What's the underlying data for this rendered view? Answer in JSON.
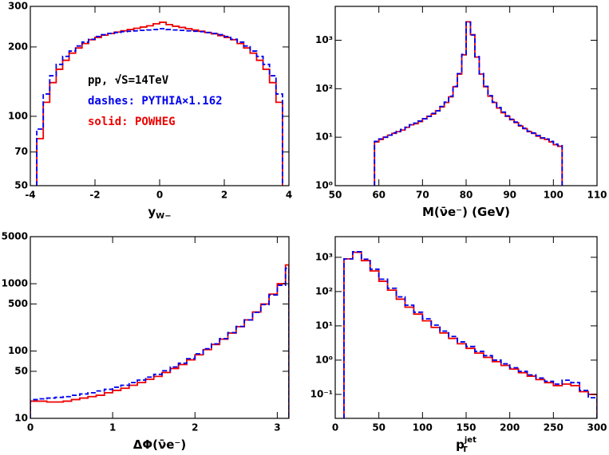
{
  "chart_data": [
    {
      "type": "histogram",
      "log_y": true,
      "xlabel": "y",
      "xlabel_sub": "W−",
      "xlim": [
        -4,
        4
      ],
      "xticks": [
        -4,
        -2,
        0,
        2,
        4
      ],
      "ylim": [
        50,
        300
      ],
      "yticks": [
        50,
        70,
        100,
        200,
        300
      ],
      "annotations": [
        {
          "text": "pp, √S=14TeV",
          "color": "#000000"
        },
        {
          "text": "dashes: PYTHIA×1.162",
          "color": "#0000ee"
        },
        {
          "text": "solid: POWHEG",
          "color": "#ee0000"
        }
      ],
      "bins": [
        -3.8,
        -3.6,
        -3.4,
        -3.2,
        -3.0,
        -2.8,
        -2.6,
        -2.4,
        -2.2,
        -2.0,
        -1.8,
        -1.6,
        -1.4,
        -1.2,
        -1.0,
        -0.8,
        -0.6,
        -0.4,
        -0.2,
        0,
        0.2,
        0.4,
        0.6,
        0.8,
        1.0,
        1.2,
        1.4,
        1.6,
        1.8,
        2.0,
        2.2,
        2.4,
        2.6,
        2.8,
        3.0,
        3.2,
        3.4,
        3.6,
        3.8
      ],
      "series": [
        {
          "name": "POWHEG",
          "color": "#ee0000",
          "dash": false,
          "values": [
            80,
            115,
            140,
            160,
            175,
            188,
            198,
            207,
            215,
            220,
            225,
            229,
            232,
            235,
            238,
            241,
            244,
            247,
            252,
            256,
            250,
            246,
            243,
            240,
            237,
            234,
            231,
            228,
            224,
            220,
            215,
            207,
            198,
            188,
            175,
            160,
            140,
            115
          ]
        },
        {
          "name": "PYTHIA",
          "color": "#0000ee",
          "dash": true,
          "values": [
            88,
            125,
            150,
            168,
            182,
            192,
            202,
            210,
            216,
            222,
            226,
            229,
            231,
            233,
            234,
            235,
            236,
            237,
            238,
            240,
            238,
            237,
            236,
            235,
            234,
            233,
            231,
            229,
            226,
            222,
            216,
            210,
            202,
            192,
            182,
            168,
            150,
            125
          ]
        }
      ]
    },
    {
      "type": "histogram",
      "log_y": true,
      "xlabel": "M(ν̄e⁻) (GeV)",
      "xlim": [
        50,
        110
      ],
      "xticks": [
        50,
        60,
        70,
        80,
        90,
        100,
        110
      ],
      "ylim": [
        1,
        5000
      ],
      "yticks": [
        {
          "value": 1,
          "label": "10⁰"
        },
        {
          "value": 10,
          "label": "10¹"
        },
        {
          "value": 100,
          "label": "10²"
        },
        {
          "value": 1000,
          "label": "10³"
        }
      ],
      "bins": [
        59,
        60,
        61,
        62,
        63,
        64,
        65,
        66,
        67,
        68,
        69,
        70,
        71,
        72,
        73,
        74,
        75,
        76,
        77,
        78,
        79,
        80,
        81,
        82,
        83,
        84,
        85,
        86,
        87,
        88,
        89,
        90,
        91,
        92,
        93,
        94,
        95,
        96,
        97,
        98,
        99,
        100,
        101,
        102
      ],
      "series": [
        {
          "name": "POWHEG",
          "color": "#ee0000",
          "dash": false,
          "values": [
            8,
            9,
            10,
            11,
            12,
            13,
            14,
            16,
            18,
            19,
            21,
            24,
            27,
            30,
            35,
            42,
            52,
            68,
            110,
            200,
            500,
            2400,
            1300,
            450,
            200,
            110,
            70,
            52,
            40,
            32,
            27,
            23,
            20,
            17,
            15,
            13,
            12,
            10.5,
            9.5,
            9,
            8,
            7,
            6.5
          ]
        },
        {
          "name": "PYTHIA",
          "color": "#0000ee",
          "dash": true,
          "values": [
            8.2,
            9.2,
            10,
            11,
            12.3,
            13.2,
            14.5,
            16,
            18,
            19.5,
            21.5,
            24,
            27,
            31,
            35,
            43,
            53,
            70,
            112,
            205,
            510,
            2350,
            1280,
            460,
            205,
            112,
            72,
            53,
            41,
            33,
            27.5,
            23.5,
            20.5,
            17.5,
            15.3,
            13.3,
            12.2,
            10.8,
            9.7,
            9.2,
            8.2,
            7.2,
            6.7
          ]
        }
      ]
    },
    {
      "type": "histogram",
      "log_y": true,
      "xlabel": "ΔΦ(ν̄e⁻)",
      "xlim": [
        0,
        3.1416
      ],
      "xticks": [
        0,
        1,
        2,
        3
      ],
      "ylim": [
        10,
        5000
      ],
      "yticks": [
        10,
        50,
        100,
        500,
        1000,
        5000
      ],
      "bins": [
        0,
        0.1,
        0.2,
        0.3,
        0.4,
        0.5,
        0.6,
        0.7,
        0.8,
        0.9,
        1.0,
        1.1,
        1.2,
        1.3,
        1.4,
        1.5,
        1.6,
        1.7,
        1.8,
        1.9,
        2.0,
        2.1,
        2.2,
        2.3,
        2.4,
        2.5,
        2.6,
        2.7,
        2.8,
        2.9,
        3.0,
        3.1,
        3.1416
      ],
      "series": [
        {
          "name": "POWHEG",
          "color": "#ee0000",
          "dash": false,
          "values": [
            18,
            18,
            17.5,
            17.5,
            18,
            19,
            20,
            21,
            22,
            24,
            26,
            28,
            31,
            34,
            38,
            42,
            48,
            55,
            63,
            74,
            88,
            105,
            125,
            150,
            185,
            230,
            290,
            380,
            500,
            700,
            1000,
            1900
          ]
        },
        {
          "name": "PYTHIA",
          "color": "#0000ee",
          "dash": true,
          "values": [
            19,
            19.5,
            20,
            20.5,
            21,
            22,
            23,
            24,
            25.5,
            27,
            29,
            31,
            34,
            37,
            41,
            45,
            51,
            58,
            66,
            77,
            91,
            108,
            128,
            153,
            188,
            232,
            290,
            375,
            490,
            680,
            950,
            1700
          ]
        }
      ]
    },
    {
      "type": "histogram",
      "log_y": true,
      "xlabel": "p",
      "xlabel_sub": "T",
      "xlabel_sup": "jet",
      "xlim": [
        0,
        300
      ],
      "xticks": [
        0,
        50,
        100,
        150,
        200,
        250,
        300
      ],
      "ylim": [
        0.02,
        4000
      ],
      "yticks": [
        {
          "value": 0.1,
          "label": "10⁻¹"
        },
        {
          "value": 1,
          "label": "10⁰"
        },
        {
          "value": 10,
          "label": "10¹"
        },
        {
          "value": 100,
          "label": "10²"
        },
        {
          "value": 1000,
          "label": "10³"
        }
      ],
      "bins": [
        10,
        20,
        30,
        40,
        50,
        60,
        70,
        80,
        90,
        100,
        110,
        120,
        130,
        140,
        150,
        160,
        170,
        180,
        190,
        200,
        210,
        220,
        230,
        240,
        250,
        260,
        270,
        280,
        290,
        300
      ],
      "series": [
        {
          "name": "POWHEG",
          "color": "#ee0000",
          "dash": false,
          "values": [
            900,
            1400,
            800,
            400,
            200,
            110,
            60,
            35,
            22,
            14,
            9,
            6.2,
            4.3,
            3.0,
            2.2,
            1.6,
            1.2,
            0.9,
            0.7,
            0.55,
            0.43,
            0.34,
            0.27,
            0.22,
            0.18,
            0.2,
            0.18,
            0.12,
            0.1
          ]
        },
        {
          "name": "PYTHIA",
          "color": "#0000ee",
          "dash": true,
          "values": [
            900,
            1450,
            880,
            450,
            230,
            125,
            70,
            40,
            25,
            16,
            10.5,
            7,
            4.9,
            3.4,
            2.5,
            1.8,
            1.35,
            1.0,
            0.78,
            0.6,
            0.47,
            0.37,
            0.3,
            0.24,
            0.2,
            0.26,
            0.22,
            0.13,
            0.08
          ]
        }
      ]
    }
  ]
}
